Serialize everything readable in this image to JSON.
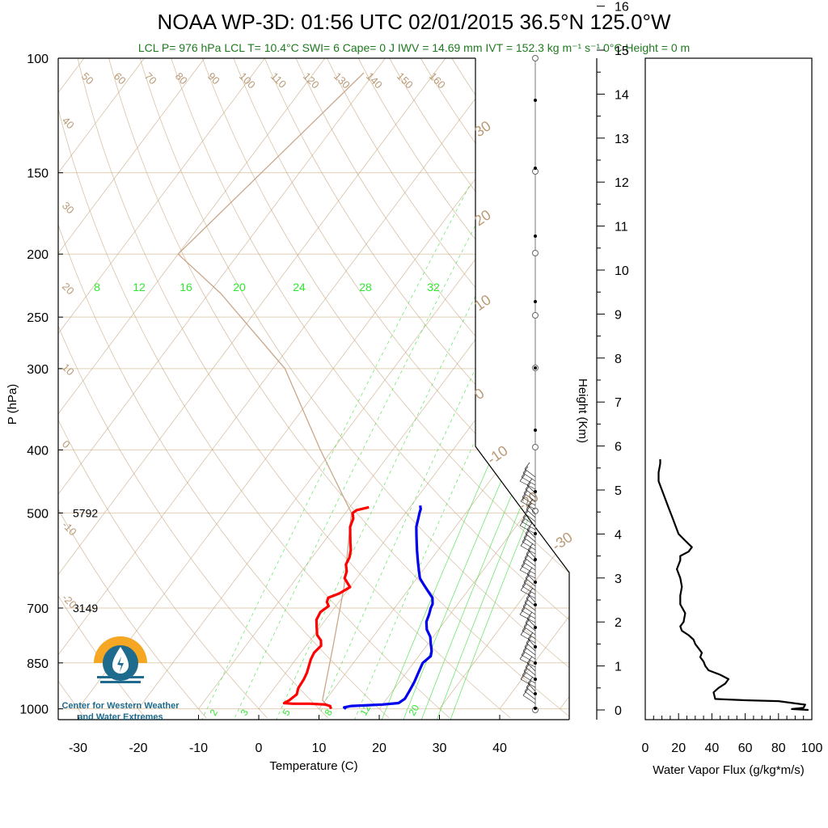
{
  "title": "NOAA WP-3D: 01:56 UTC 02/01/2015  36.5°N 125.0°W",
  "subtitle": "LCL P= 976 hPa  LCL T= 10.4°C  SWI= 6  Cape= 0 J  IWV = 14.69 mm  IVT = 152.3 kg m⁻¹ s⁻¹  0°C Height = 0 m",
  "logo": {
    "line1": "Center for Western Weather",
    "line2": "and Water Extremes"
  },
  "colors": {
    "temperature": "#ff0000",
    "dewpoint": "#0000ee",
    "dry_adiabat": "#c8a882",
    "mixing_ratio": "#33dd33",
    "isobar": "#e2cfb3",
    "logo_orange": "#f5a623",
    "logo_blue": "#1e6b8e"
  },
  "chart_data": [
    {
      "type": "line",
      "name": "skew-t",
      "xlabel": "Temperature (C)",
      "ylabel": "P (hPa)",
      "xlim": [
        -34,
        52
      ],
      "ylim": [
        1000,
        100
      ],
      "y_scale": "log",
      "x_ticks": [
        "-30",
        "-20",
        "-10",
        "0",
        "10",
        "20",
        "30",
        "40"
      ],
      "y_ticks": [
        "100",
        "150",
        "200",
        "250",
        "300",
        "400",
        "500",
        "700",
        "850",
        "1000"
      ],
      "height_annotations": [
        {
          "p": 500,
          "label": "5792"
        },
        {
          "p": 700,
          "label": "3149"
        }
      ],
      "dry_adiabat_labels": [
        "50",
        "60",
        "70",
        "80",
        "90",
        "100",
        "110",
        "120",
        "130",
        "140",
        "150",
        "160",
        "40",
        "30",
        "20",
        "10",
        "0",
        "-10",
        "-20"
      ],
      "secondary_labels": [
        "30",
        "20",
        "10",
        "0",
        "-10",
        "-20",
        "-30"
      ],
      "mixing_ratio_labels_top": [
        "8",
        "12",
        "16",
        "20",
        "24",
        "28",
        "32"
      ],
      "mixing_ratio_labels_bottom": [
        "2",
        "3",
        "5",
        "8",
        "12",
        "20"
      ],
      "series": [
        {
          "name": "Temperature",
          "points": [
            [
              12.0,
              1000
            ],
            [
              11.5,
              990
            ],
            [
              10.5,
              985
            ],
            [
              8.0,
              982
            ],
            [
              5.0,
              982
            ],
            [
              3.5,
              980
            ],
            [
              4.0,
              970
            ],
            [
              4.5,
              950
            ],
            [
              4.0,
              930
            ],
            [
              3.8,
              900
            ],
            [
              3.5,
              880
            ],
            [
              3.0,
              860
            ],
            [
              2.5,
              840
            ],
            [
              2.2,
              820
            ],
            [
              2.5,
              800
            ],
            [
              1.8,
              785
            ],
            [
              0.5,
              770
            ],
            [
              -0.5,
              750
            ],
            [
              -1.5,
              730
            ],
            [
              -1.8,
              710
            ],
            [
              -1.2,
              695
            ],
            [
              -2.0,
              685
            ],
            [
              -2.3,
              675
            ],
            [
              -1.0,
              665
            ],
            [
              0.0,
              650
            ],
            [
              -1.0,
              640
            ],
            [
              -2.0,
              630
            ],
            [
              -2.5,
              615
            ],
            [
              -3.5,
              600
            ],
            [
              -3.8,
              585
            ],
            [
              -4.5,
              570
            ],
            [
              -5.5,
              555
            ],
            [
              -6.5,
              540
            ],
            [
              -7.5,
              525
            ],
            [
              -8.0,
              510
            ],
            [
              -8.8,
              500
            ],
            [
              -8.5,
              495
            ],
            [
              -7.5,
              492
            ],
            [
              -6.8,
              490
            ]
          ]
        },
        {
          "name": "Dewpoint",
          "points": [
            [
              14.5,
              1000
            ],
            [
              14.0,
              995
            ],
            [
              15.0,
              990
            ],
            [
              20.0,
              985
            ],
            [
              22.5,
              980
            ],
            [
              23.0,
              965
            ],
            [
              22.8,
              940
            ],
            [
              22.5,
              910
            ],
            [
              22.0,
              880
            ],
            [
              21.5,
              850
            ],
            [
              22.0,
              830
            ],
            [
              21.5,
              815
            ],
            [
              20.5,
              795
            ],
            [
              19.5,
              775
            ],
            [
              18.0,
              755
            ],
            [
              17.0,
              735
            ],
            [
              16.5,
              715
            ],
            [
              16.0,
              700
            ],
            [
              15.8,
              690
            ],
            [
              15.0,
              675
            ],
            [
              13.5,
              660
            ],
            [
              12.0,
              645
            ],
            [
              10.5,
              630
            ],
            [
              9.5,
              615
            ],
            [
              8.5,
              600
            ],
            [
              7.5,
              585
            ],
            [
              6.5,
              570
            ],
            [
              5.5,
              555
            ],
            [
              4.5,
              540
            ],
            [
              3.5,
              525
            ],
            [
              2.8,
              510
            ],
            [
              2.3,
              500
            ],
            [
              2.0,
              493
            ],
            [
              1.5,
              487
            ]
          ]
        },
        {
          "name": "Wind barbs",
          "heights_km": [
            0.0,
            0.1,
            0.3,
            0.5,
            0.8,
            1.0,
            1.3,
            1.6,
            2.0,
            2.5,
            3.0,
            3.5,
            4.0,
            4.5,
            5.0,
            5.5,
            5.9
          ]
        }
      ]
    },
    {
      "type": "line",
      "name": "water-vapor-flux",
      "xlabel": "Water Vapor Flux (g/kg*m/s)",
      "ylabel": "Height (Km)",
      "xlim": [
        0,
        100
      ],
      "ylim": [
        0,
        16.5
      ],
      "x_ticks": [
        "0",
        "20",
        "40",
        "60",
        "80",
        "100"
      ],
      "y_ticks": [
        "0",
        "1",
        "2",
        "3",
        "4",
        "5",
        "6",
        "7",
        "8",
        "9",
        "10",
        "11",
        "12",
        "13",
        "14",
        "15",
        "16"
      ],
      "series": [
        {
          "name": "Flux",
          "points": [
            [
              98,
              0.0
            ],
            [
              88,
              0.02
            ],
            [
              95,
              0.05
            ],
            [
              96,
              0.12
            ],
            [
              80,
              0.2
            ],
            [
              60,
              0.22
            ],
            [
              42,
              0.25
            ],
            [
              41,
              0.4
            ],
            [
              44,
              0.5
            ],
            [
              48,
              0.6
            ],
            [
              50,
              0.7
            ],
            [
              45,
              0.8
            ],
            [
              38,
              0.9
            ],
            [
              36,
              1.0
            ],
            [
              35,
              1.1
            ],
            [
              33,
              1.2
            ],
            [
              34,
              1.3
            ],
            [
              32,
              1.4
            ],
            [
              30,
              1.5
            ],
            [
              29,
              1.6
            ],
            [
              26,
              1.7
            ],
            [
              22,
              1.8
            ],
            [
              21,
              1.9
            ],
            [
              23,
              2.0
            ],
            [
              24,
              2.2
            ],
            [
              21,
              2.4
            ],
            [
              21,
              2.6
            ],
            [
              22,
              2.8
            ],
            [
              21,
              3.0
            ],
            [
              19,
              3.2
            ],
            [
              21,
              3.4
            ],
            [
              21,
              3.5
            ],
            [
              26,
              3.6
            ],
            [
              28,
              3.7
            ],
            [
              24,
              3.85
            ],
            [
              20,
              4.0
            ],
            [
              18,
              4.2
            ],
            [
              16,
              4.4
            ],
            [
              14,
              4.6
            ],
            [
              12,
              4.8
            ],
            [
              10,
              5.0
            ],
            [
              8,
              5.2
            ],
            [
              8,
              5.4
            ],
            [
              9,
              5.6
            ],
            [
              9,
              5.7
            ]
          ]
        }
      ]
    }
  ]
}
